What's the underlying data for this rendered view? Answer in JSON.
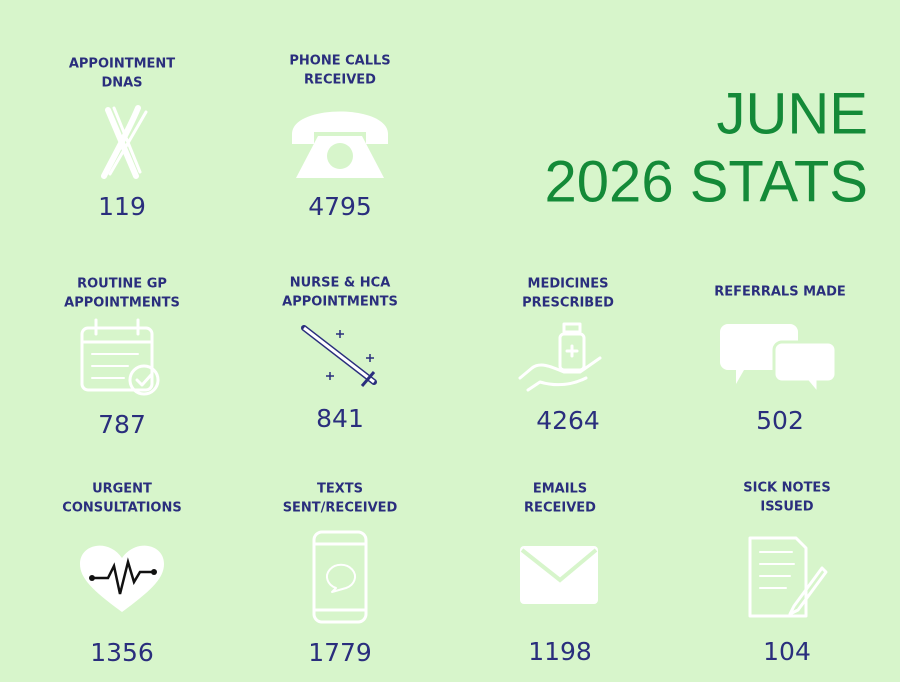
{
  "header": {
    "title_lines": [
      "JUNE",
      "2026 STATS"
    ]
  },
  "stats": [
    {
      "label": [
        "APPOINTMENT",
        "DNAS"
      ],
      "value": 119
    },
    {
      "label": [
        "PHONE CALLS",
        "RECEIVED"
      ],
      "value": 4795
    },
    {
      "label": [
        "ROUTINE GP",
        "APPOINTMENTS"
      ],
      "value": 787
    },
    {
      "label": [
        "NURSE & HCA",
        "APPOINTMENTS"
      ],
      "value": 841
    },
    {
      "label": [
        "MEDICINES",
        "PRESCRIBED"
      ],
      "value": 4264
    },
    {
      "label": [
        "REFERRALS MADE"
      ],
      "value": 502
    },
    {
      "label": [
        "URGENT",
        "CONSULTATIONS"
      ],
      "value": 1356
    },
    {
      "label": [
        "TEXTS",
        "SENT/RECEIVED"
      ],
      "value": 1779
    },
    {
      "label": [
        "EMAILS",
        "RECEIVED"
      ],
      "value": 1198
    },
    {
      "label": [
        "SICK NOTES",
        "ISSUED"
      ],
      "value": 104
    }
  ]
}
